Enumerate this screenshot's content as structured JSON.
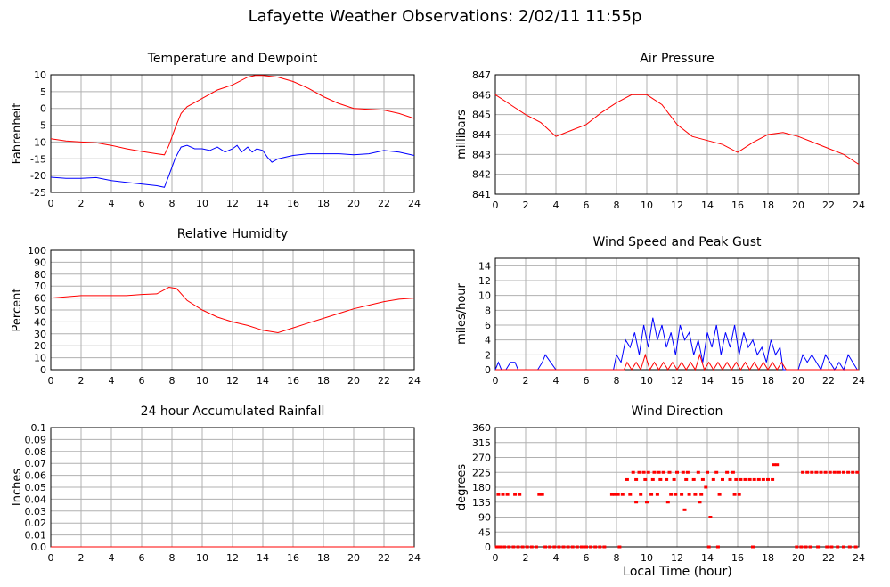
{
  "page_title": "Lafayette Weather Observations: 2/02/11 11:55p",
  "xaxis_title": "Local Time (hour)",
  "chart_data": [
    {
      "id": "temp",
      "type": "line",
      "title": "Temperature and Dewpoint",
      "xlabel": "",
      "ylabel": "Fahrenheit",
      "xlim": [
        0,
        24
      ],
      "ylim": [
        -25,
        10
      ],
      "xticks": [
        0,
        2,
        4,
        6,
        8,
        10,
        12,
        14,
        16,
        18,
        20,
        22,
        24
      ],
      "yticks": [
        -25,
        -20,
        -15,
        -10,
        -5,
        0,
        5,
        10
      ],
      "grid": true,
      "series": [
        {
          "color": "#ff0000",
          "x": [
            0,
            1,
            2,
            3,
            4,
            5,
            6,
            7,
            7.5,
            7.8,
            8.2,
            8.6,
            9,
            10,
            11,
            12,
            13,
            13.5,
            14,
            15,
            16,
            17,
            18,
            19,
            20,
            21,
            22,
            23,
            24
          ],
          "y": [
            -9,
            -9.7,
            -10,
            -10.2,
            -11,
            -12,
            -12.8,
            -13.5,
            -13.8,
            -11,
            -6,
            -1.5,
            0.5,
            3,
            5.5,
            7,
            9.3,
            9.8,
            9.8,
            9.3,
            8,
            6,
            3.5,
            1.5,
            0,
            -0.3,
            -0.5,
            -1.5,
            -3
          ]
        },
        {
          "color": "#0000ff",
          "x": [
            0,
            1,
            2,
            3,
            4,
            5,
            6,
            7,
            7.5,
            7.8,
            8.2,
            8.6,
            9,
            9.5,
            10,
            10.5,
            11,
            11.5,
            12,
            12.3,
            12.6,
            13,
            13.3,
            13.6,
            14,
            14.3,
            14.6,
            15,
            15.5,
            16,
            17,
            18,
            19,
            20,
            21,
            22,
            23,
            24
          ],
          "y": [
            -20.5,
            -20.8,
            -20.8,
            -20.6,
            -21.5,
            -22,
            -22.5,
            -23,
            -23.5,
            -20,
            -15,
            -11.5,
            -11,
            -12,
            -12,
            -12.5,
            -11.5,
            -13,
            -12,
            -11,
            -13,
            -11.5,
            -13,
            -12,
            -12.5,
            -14.5,
            -16,
            -15,
            -14.5,
            -14,
            -13.5,
            -13.5,
            -13.5,
            -13.8,
            -13.5,
            -12.5,
            -13,
            -14
          ]
        }
      ]
    },
    {
      "id": "press",
      "type": "line",
      "title": "Air Pressure",
      "xlabel": "",
      "ylabel": "millibars",
      "xlim": [
        0,
        24
      ],
      "ylim": [
        841,
        847
      ],
      "xticks": [
        0,
        2,
        4,
        6,
        8,
        10,
        12,
        14,
        16,
        18,
        20,
        22,
        24
      ],
      "yticks": [
        841,
        842,
        843,
        844,
        845,
        846,
        847
      ],
      "grid": true,
      "series": [
        {
          "color": "#ff0000",
          "x": [
            0,
            1,
            2,
            3,
            4,
            5,
            6,
            7,
            8,
            9,
            10,
            11,
            12,
            13,
            14,
            15,
            16,
            17,
            18,
            19,
            20,
            21,
            22,
            23,
            24
          ],
          "y": [
            846,
            845.5,
            845,
            844.6,
            843.9,
            844.2,
            844.5,
            845.1,
            845.6,
            846,
            846,
            845.5,
            844.5,
            843.9,
            843.7,
            843.5,
            843.1,
            843.6,
            844,
            844.1,
            843.9,
            843.6,
            843.3,
            843,
            842.5
          ]
        }
      ]
    },
    {
      "id": "rh",
      "type": "line",
      "title": "Relative Humidity",
      "xlabel": "",
      "ylabel": "Percent",
      "xlim": [
        0,
        24
      ],
      "ylim": [
        0,
        100
      ],
      "xticks": [
        0,
        2,
        4,
        6,
        8,
        10,
        12,
        14,
        16,
        18,
        20,
        22,
        24
      ],
      "yticks": [
        0,
        10,
        20,
        30,
        40,
        50,
        60,
        70,
        80,
        90,
        100
      ],
      "grid": true,
      "series": [
        {
          "color": "#ff0000",
          "x": [
            0,
            1,
            2,
            3,
            4,
            5,
            6,
            7,
            7.8,
            8.3,
            9,
            10,
            11,
            12,
            13,
            14,
            15,
            16,
            17,
            18,
            19,
            20,
            21,
            22,
            23,
            24
          ],
          "y": [
            60,
            61,
            62,
            62,
            62,
            62,
            63,
            63.5,
            69,
            68,
            58,
            50,
            44,
            40,
            37,
            33,
            31,
            35,
            39,
            43,
            47,
            51,
            54,
            57,
            59,
            60
          ]
        }
      ]
    },
    {
      "id": "wind",
      "type": "line",
      "title": "Wind Speed and Peak Gust",
      "xlabel": "",
      "ylabel": "miles/hour",
      "xlim": [
        0,
        24
      ],
      "ylim": [
        0,
        15
      ],
      "xticks": [
        0,
        2,
        4,
        6,
        8,
        10,
        12,
        14,
        16,
        18,
        20,
        22,
        24
      ],
      "yticks": [
        0,
        2,
        4,
        6,
        8,
        10,
        12,
        14
      ],
      "grid": true,
      "series": [
        {
          "color": "#0000ff",
          "x": [
            0,
            0.2,
            0.4,
            0.7,
            1,
            1.3,
            1.5,
            2,
            2.8,
            3.1,
            3.3,
            4,
            7.5,
            7.8,
            8,
            8.3,
            8.6,
            8.9,
            9.2,
            9.5,
            9.8,
            10.1,
            10.4,
            10.7,
            11,
            11.3,
            11.6,
            11.9,
            12.2,
            12.5,
            12.8,
            13.1,
            13.4,
            13.7,
            14,
            14.3,
            14.6,
            14.9,
            15.2,
            15.5,
            15.8,
            16.1,
            16.4,
            16.7,
            17,
            17.3,
            17.6,
            17.9,
            18.2,
            18.5,
            18.8,
            19,
            19.5,
            20,
            20.3,
            20.6,
            20.9,
            21.2,
            21.5,
            21.8,
            22.1,
            22.4,
            22.7,
            23,
            23.3,
            23.6,
            23.9
          ],
          "y": [
            0,
            1,
            0,
            0,
            1,
            1,
            0,
            0,
            0,
            1,
            2,
            0,
            0,
            0,
            2,
            1,
            4,
            3,
            5,
            2,
            6,
            3,
            7,
            4,
            6,
            3,
            5,
            2,
            6,
            4,
            5,
            2,
            4,
            1,
            5,
            3,
            6,
            2,
            5,
            3,
            6,
            2,
            5,
            3,
            4,
            2,
            3,
            1,
            4,
            2,
            3,
            0,
            0,
            0,
            2,
            1,
            2,
            1,
            0,
            2,
            1,
            0,
            1,
            0,
            2,
            1,
            0
          ]
        },
        {
          "color": "#ff0000",
          "x": [
            0,
            8.5,
            8.7,
            9,
            9.3,
            9.6,
            9.9,
            10.2,
            10.5,
            10.8,
            11.1,
            11.4,
            11.7,
            12,
            12.3,
            12.6,
            12.9,
            13.2,
            13.5,
            13.8,
            14.1,
            14.4,
            14.7,
            15,
            15.3,
            15.6,
            15.9,
            16.2,
            16.5,
            16.8,
            17.1,
            17.4,
            17.7,
            18,
            18.3,
            18.6,
            18.9,
            19.2,
            24
          ],
          "y": [
            0,
            0,
            1,
            0,
            1,
            0,
            2,
            0,
            1,
            0,
            1,
            0,
            1,
            0,
            1,
            0,
            1,
            0,
            2,
            0,
            1,
            0,
            1,
            0,
            1,
            0,
            1,
            0,
            1,
            0,
            1,
            0,
            1,
            0,
            1,
            0,
            1,
            0,
            0
          ]
        }
      ]
    },
    {
      "id": "rain",
      "type": "line",
      "title": "24 hour Accumulated Rainfall",
      "xlabel": "",
      "ylabel": "Inches",
      "xlim": [
        0,
        24
      ],
      "ylim": [
        0,
        0.1
      ],
      "xticks": [
        0,
        2,
        4,
        6,
        8,
        10,
        12,
        14,
        16,
        18,
        20,
        22,
        24
      ],
      "yticks": [
        0.0,
        0.01,
        0.02,
        0.03,
        0.04,
        0.05,
        0.06,
        0.07,
        0.08,
        0.09,
        0.1
      ],
      "ytick_labels": [
        "0.0",
        "0.01",
        "0.02",
        "0.03",
        "0.04",
        "0.05",
        "0.06",
        "0.07",
        "0.08",
        "0.09",
        "0.1"
      ],
      "grid": true,
      "series": [
        {
          "color": "#ff0000",
          "x": [
            0,
            24
          ],
          "y": [
            0,
            0
          ]
        }
      ]
    },
    {
      "id": "dir",
      "type": "scatter",
      "title": "Wind Direction",
      "xlabel": "Local Time (hour)",
      "ylabel": "degrees",
      "xlim": [
        0,
        24
      ],
      "ylim": [
        0,
        360
      ],
      "xticks": [
        0,
        2,
        4,
        6,
        8,
        10,
        12,
        14,
        16,
        18,
        20,
        22,
        24
      ],
      "yticks": [
        0,
        45,
        90,
        135,
        180,
        225,
        270,
        315,
        360
      ],
      "grid": true,
      "series": [
        {
          "color": "#ff0000",
          "x": [
            0.1,
            0.3,
            0.6,
            0.9,
            1.2,
            1.5,
            1.8,
            2.1,
            2.4,
            2.7,
            3.3,
            3.6,
            3.9,
            4.2,
            4.5,
            4.8,
            5.1,
            5.4,
            5.7,
            6.0,
            6.3,
            6.6,
            6.9,
            7.2,
            8.2,
            14.1,
            14.7,
            17.0,
            19.9,
            20.2,
            20.5,
            20.8,
            21.3,
            21.9,
            22.2,
            22.6,
            23.0,
            23.4,
            23.8,
            0.2,
            0.5,
            0.8,
            1.3,
            1.6,
            2.9,
            3.1,
            7.7,
            7.9,
            8.1,
            8.4,
            8.9,
            9.6,
            10.3,
            10.7,
            11.6,
            11.9,
            12.3,
            12.8,
            13.2,
            13.6,
            14.8,
            15.8,
            16.1,
            8.7,
            9.3,
            9.9,
            10.4,
            10.9,
            11.3,
            11.8,
            12.6,
            13.1,
            13.7,
            14.4,
            15.0,
            15.5,
            15.9,
            16.2,
            16.5,
            16.8,
            17.1,
            17.4,
            17.7,
            18.0,
            18.3,
            9.1,
            9.5,
            9.8,
            10.1,
            10.5,
            10.8,
            11.1,
            11.5,
            12.0,
            12.4,
            12.7,
            13.4,
            14.0,
            14.6,
            15.3,
            15.7,
            20.3,
            20.6,
            20.9,
            21.2,
            21.5,
            21.8,
            22.1,
            22.4,
            22.7,
            23.0,
            23.3,
            23.6,
            23.9,
            18.4,
            18.6,
            9.3,
            10.0,
            11.4,
            12.5,
            13.5,
            14.2,
            13.9
          ],
          "y": [
            0,
            0,
            0,
            0,
            0,
            0,
            0,
            0,
            0,
            0,
            0,
            0,
            0,
            0,
            0,
            0,
            0,
            0,
            0,
            0,
            0,
            0,
            0,
            0,
            0,
            0,
            0,
            0,
            0,
            0,
            0,
            0,
            0,
            0,
            0,
            0,
            0,
            0,
            0,
            158,
            158,
            158,
            158,
            158,
            158,
            158,
            158,
            158,
            158,
            158,
            158,
            158,
            158,
            158,
            158,
            158,
            158,
            158,
            158,
            158,
            158,
            158,
            158,
            203,
            203,
            203,
            203,
            203,
            203,
            203,
            203,
            203,
            203,
            203,
            203,
            203,
            203,
            203,
            203,
            203,
            203,
            203,
            203,
            203,
            203,
            225,
            225,
            225,
            225,
            225,
            225,
            225,
            225,
            225,
            225,
            225,
            225,
            225,
            225,
            225,
            225,
            225,
            225,
            225,
            225,
            225,
            225,
            225,
            225,
            225,
            225,
            225,
            225,
            225,
            248,
            248,
            135,
            135,
            135,
            112,
            135,
            90,
            180
          ]
        }
      ]
    }
  ]
}
